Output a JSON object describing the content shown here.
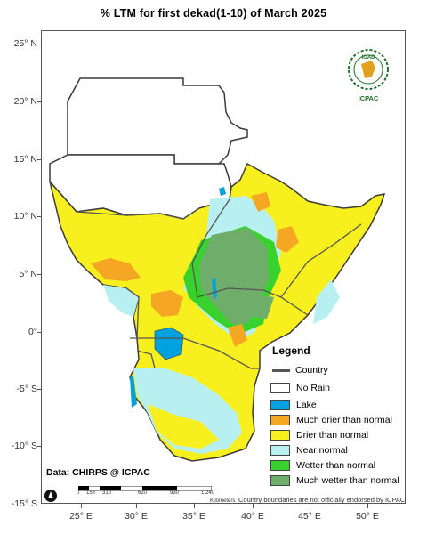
{
  "title": "% LTM  for  first dekad(1-10) of March 2025",
  "data_source": "Data: CHIRPS @ ICPAC",
  "disclaimer": "Country boundaries are not officially endorsed by ICPAC",
  "logo": {
    "top_text": "IGAD",
    "bottom_text": "ICPAC",
    "icon": "igad-emblem-icon"
  },
  "axes": {
    "y_labels": [
      "25° N",
      "20° N",
      "15° N",
      "10° N",
      "5° N",
      "0°",
      "-5° S",
      "-10° S",
      "-15° S"
    ],
    "x_labels": [
      "25° E",
      "30° E",
      "35° E",
      "40° E",
      "45° E",
      "50° E"
    ]
  },
  "scale_bar": {
    "ticks": [
      "0",
      "155",
      "310",
      "620",
      "930",
      "1,240"
    ],
    "unit": "Kilometers"
  },
  "legend": {
    "title": "Legend",
    "country_label": "Country",
    "items": [
      {
        "label": "No Rain",
        "color": "#ffffff"
      },
      {
        "label": "Lake",
        "color": "#00a1de"
      },
      {
        "label": "Much drier than normal",
        "color": "#f5a623"
      },
      {
        "label": "Drier than normal",
        "color": "#f8f01e"
      },
      {
        "label": "Near normal",
        "color": "#b8f0f2"
      },
      {
        "label": "Wetter than normal",
        "color": "#39d12e"
      },
      {
        "label": "Much wetter than normal",
        "color": "#6fae6a"
      }
    ]
  },
  "colors": {
    "country_line": "#555555",
    "land_outline": "#3a3a3a"
  }
}
